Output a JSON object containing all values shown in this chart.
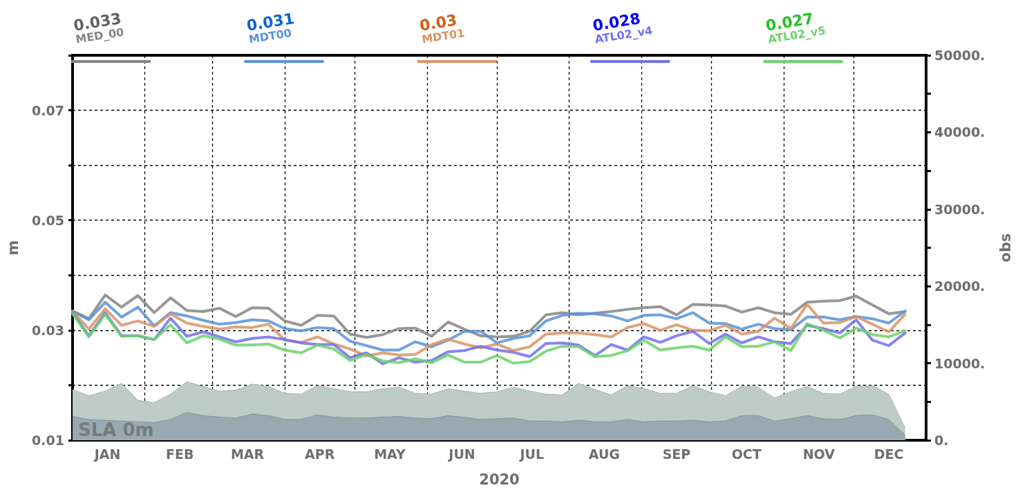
{
  "chart_data": {
    "type": "line",
    "title": "SLA 0m",
    "xlabel": "2020",
    "ylabel": "m",
    "y2label": "obs",
    "annotations": [
      "0.033",
      "0.031",
      "0.03",
      "0.028",
      "0.027"
    ],
    "x": [
      "2020-01-01",
      "2020-01-08",
      "2020-01-15",
      "2020-01-22",
      "2020-01-29",
      "2020-02-05",
      "2020-02-12",
      "2020-02-19",
      "2020-02-26",
      "2020-03-04",
      "2020-03-11",
      "2020-03-18",
      "2020-03-25",
      "2020-04-01",
      "2020-04-08",
      "2020-04-15",
      "2020-04-22",
      "2020-04-29",
      "2020-05-06",
      "2020-05-13",
      "2020-05-20",
      "2020-05-27",
      "2020-06-03",
      "2020-06-10",
      "2020-06-17",
      "2020-06-24",
      "2020-07-01",
      "2020-07-08",
      "2020-07-15",
      "2020-07-22",
      "2020-07-29",
      "2020-08-05",
      "2020-08-12",
      "2020-08-19",
      "2020-08-26",
      "2020-09-02",
      "2020-09-09",
      "2020-09-16",
      "2020-09-23",
      "2020-09-30",
      "2020-10-07",
      "2020-10-14",
      "2020-10-21",
      "2020-10-28",
      "2020-11-04",
      "2020-11-11",
      "2020-11-18",
      "2020-11-25",
      "2020-12-02",
      "2020-12-09",
      "2020-12-16",
      "2020-12-23"
    ],
    "series": [
      {
        "name": "MED_00",
        "color": "#858585",
        "values": [
          0.0335,
          0.0321,
          0.0364,
          0.0342,
          0.0363,
          0.0332,
          0.0359,
          0.0336,
          0.0334,
          0.034,
          0.0325,
          0.0341,
          0.034,
          0.0317,
          0.0309,
          0.0327,
          0.0326,
          0.0293,
          0.0287,
          0.0292,
          0.0303,
          0.0304,
          0.0289,
          0.0315,
          0.0302,
          0.029,
          0.0288,
          0.0289,
          0.0298,
          0.0328,
          0.0332,
          0.0328,
          0.0331,
          0.0334,
          0.0338,
          0.0341,
          0.0343,
          0.0328,
          0.0347,
          0.0346,
          0.0344,
          0.0333,
          0.0341,
          0.0332,
          0.0329,
          0.0351,
          0.0353,
          0.0354,
          0.0362,
          0.0346,
          0.033,
          0.0334
        ]
      },
      {
        "name": "MDT00",
        "color": "#5692dc",
        "values": [
          0.0335,
          0.0319,
          0.0351,
          0.0324,
          0.0342,
          0.0308,
          0.0332,
          0.0326,
          0.0318,
          0.0311,
          0.0314,
          0.0319,
          0.0317,
          0.0303,
          0.0299,
          0.0305,
          0.0303,
          0.028,
          0.0272,
          0.0264,
          0.0264,
          0.0279,
          0.027,
          0.0282,
          0.0298,
          0.0298,
          0.0277,
          0.0285,
          0.029,
          0.0317,
          0.0327,
          0.0331,
          0.033,
          0.0326,
          0.0317,
          0.0327,
          0.0328,
          0.0321,
          0.0332,
          0.0313,
          0.0312,
          0.0302,
          0.0311,
          0.0303,
          0.0301,
          0.0324,
          0.0324,
          0.0319,
          0.0325,
          0.0321,
          0.0313,
          0.0335
        ]
      },
      {
        "name": "MDT01",
        "color": "#dc9264",
        "values": [
          0.0335,
          0.0302,
          0.0339,
          0.0309,
          0.0317,
          0.0307,
          0.033,
          0.0313,
          0.0307,
          0.0302,
          0.0306,
          0.0305,
          0.0311,
          0.0282,
          0.0278,
          0.0288,
          0.0275,
          0.0266,
          0.0253,
          0.0259,
          0.0255,
          0.0256,
          0.0274,
          0.0284,
          0.0275,
          0.0268,
          0.0275,
          0.0263,
          0.027,
          0.0293,
          0.0295,
          0.0295,
          0.0292,
          0.0288,
          0.0305,
          0.0312,
          0.03,
          0.031,
          0.03,
          0.0299,
          0.0309,
          0.0293,
          0.0298,
          0.0322,
          0.0303,
          0.0347,
          0.0313,
          0.0314,
          0.0325,
          0.0311,
          0.0297,
          0.0329
        ]
      },
      {
        "name": "ATL02_v4",
        "color": "#7070f0",
        "values": [
          0.0332,
          0.029,
          0.0332,
          0.029,
          0.029,
          0.0283,
          0.0322,
          0.0289,
          0.0297,
          0.0288,
          0.0279,
          0.0285,
          0.0288,
          0.0283,
          0.0277,
          0.0274,
          0.0274,
          0.025,
          0.0259,
          0.0239,
          0.025,
          0.0242,
          0.0245,
          0.0261,
          0.0263,
          0.0271,
          0.0264,
          0.026,
          0.0252,
          0.0276,
          0.0277,
          0.0273,
          0.0254,
          0.0274,
          0.0264,
          0.0288,
          0.0278,
          0.029,
          0.0298,
          0.0276,
          0.0293,
          0.0277,
          0.0288,
          0.0279,
          0.0276,
          0.0309,
          0.0303,
          0.0295,
          0.0319,
          0.0282,
          0.0272,
          0.0295
        ]
      },
      {
        "name": "ATL02_v5",
        "color": "#6ad26a",
        "values": [
          0.033,
          0.0288,
          0.0329,
          0.0289,
          0.029,
          0.0283,
          0.031,
          0.0277,
          0.029,
          0.0284,
          0.0273,
          0.0273,
          0.0275,
          0.0264,
          0.0259,
          0.0273,
          0.0266,
          0.0245,
          0.0256,
          0.0244,
          0.0241,
          0.0248,
          0.0241,
          0.0255,
          0.0242,
          0.0242,
          0.0254,
          0.024,
          0.0243,
          0.0262,
          0.0271,
          0.027,
          0.0252,
          0.0254,
          0.0263,
          0.0282,
          0.0264,
          0.0268,
          0.0271,
          0.0264,
          0.0288,
          0.027,
          0.0271,
          0.0279,
          0.0263,
          0.0312,
          0.03,
          0.0286,
          0.0304,
          0.0292,
          0.0288,
          0.0299
        ]
      },
      {
        "type": "area",
        "axis": "y2",
        "color": "#bfcbc6",
        "values": [
          6600,
          5800,
          6400,
          7400,
          5200,
          4900,
          6000,
          7600,
          7000,
          6400,
          6500,
          7300,
          7000,
          6100,
          6000,
          7100,
          6700,
          6300,
          6300,
          6700,
          6900,
          6100,
          6000,
          6700,
          6400,
          6100,
          6300,
          6900,
          6400,
          6000,
          5900,
          7400,
          6600,
          5900,
          7100,
          6700,
          6100,
          6100,
          7100,
          6300,
          5800,
          7000,
          6900,
          5500,
          6300,
          7000,
          6100,
          6000,
          7000,
          7100,
          6000,
          1600
        ]
      },
      {
        "type": "area",
        "axis": "y2",
        "color": "#9aa9b1",
        "values": [
          3100,
          2700,
          2600,
          2500,
          2400,
          2300,
          2700,
          3600,
          3200,
          3000,
          2900,
          3400,
          3200,
          2700,
          2700,
          3300,
          3000,
          2900,
          2900,
          3000,
          3100,
          2900,
          2800,
          3200,
          3000,
          2700,
          2800,
          2900,
          2500,
          2500,
          2400,
          2600,
          2400,
          2400,
          2700,
          2400,
          2500,
          2500,
          2600,
          2400,
          2500,
          3200,
          3200,
          2500,
          2800,
          3200,
          2800,
          2700,
          3200,
          3300,
          2700,
          700
        ]
      }
    ],
    "xlim": [
      "2020-01-01",
      "2021-01-01"
    ],
    "xticks": [
      {
        "value": "2020-01-16",
        "label": "JAN"
      },
      {
        "value": "2020-02-01",
        "label": null
      },
      {
        "value": "2020-02-16",
        "label": "FEB"
      },
      {
        "value": "2020-03-01",
        "label": null
      },
      {
        "value": "2020-03-16",
        "label": "MAR"
      },
      {
        "value": "2020-04-01",
        "label": null
      },
      {
        "value": "2020-04-16",
        "label": "APR"
      },
      {
        "value": "2020-05-01",
        "label": null
      },
      {
        "value": "2020-05-16",
        "label": "MAY"
      },
      {
        "value": "2020-06-01",
        "label": null
      },
      {
        "value": "2020-06-16",
        "label": "JUN"
      },
      {
        "value": "2020-07-01",
        "label": null
      },
      {
        "value": "2020-07-16",
        "label": "JUL"
      },
      {
        "value": "2020-08-01",
        "label": null
      },
      {
        "value": "2020-08-16",
        "label": "AUG"
      },
      {
        "value": "2020-09-01",
        "label": null
      },
      {
        "value": "2020-09-16",
        "label": "SEP"
      },
      {
        "value": "2020-10-01",
        "label": null
      },
      {
        "value": "2020-10-16",
        "label": "OCT"
      },
      {
        "value": "2020-11-01",
        "label": null
      },
      {
        "value": "2020-11-16",
        "label": "NOV"
      },
      {
        "value": "2020-12-01",
        "label": null
      },
      {
        "value": "2020-12-16",
        "label": "DEC"
      }
    ],
    "ylim": [
      0.01,
      0.08
    ],
    "yticks": [
      0.01,
      {
        "value": 0.02,
        "label": null
      },
      0.03,
      {
        "value": 0.04,
        "label": null
      },
      0.05,
      {
        "value": 0.06,
        "label": null
      },
      0.07,
      {
        "value": 0.08,
        "label": null
      }
    ],
    "y2lim": [
      0,
      50000
    ],
    "y2ticks": [
      {
        "value": 0,
        "label": "0."
      },
      {
        "value": 5000,
        "label": null
      },
      {
        "value": 10000,
        "label": "10000."
      },
      {
        "value": 15000,
        "label": null
      },
      {
        "value": 20000,
        "label": "20000."
      },
      {
        "value": 25000,
        "label": null
      },
      {
        "value": 30000,
        "label": "30000."
      },
      {
        "value": 35000,
        "label": null
      },
      {
        "value": 40000,
        "label": "40000."
      },
      {
        "value": 45000,
        "label": null
      },
      {
        "value": 50000,
        "label": "50000."
      }
    ],
    "grid": true,
    "legend": "top"
  }
}
